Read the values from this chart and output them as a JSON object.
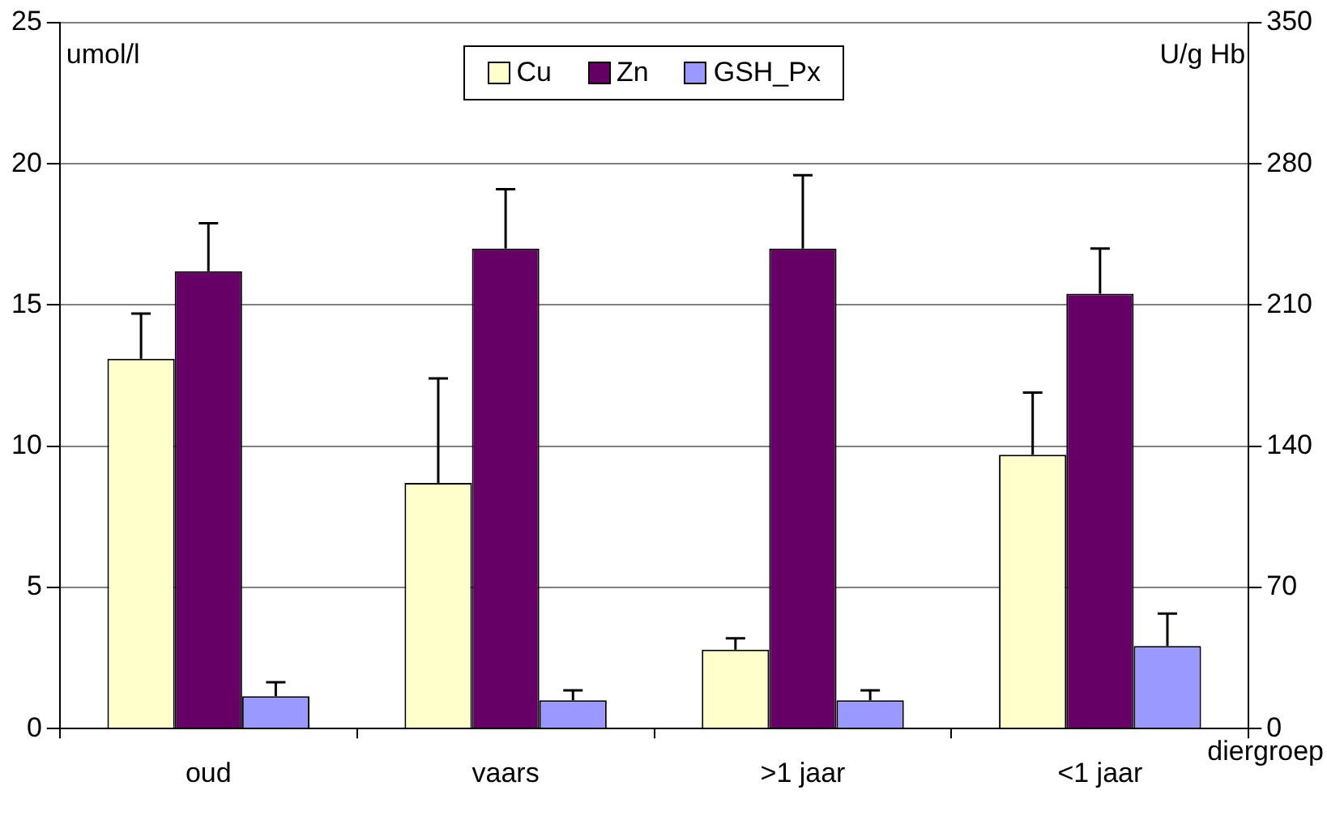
{
  "chart_data": {
    "type": "bar",
    "categories": [
      "oud",
      "vaars",
      ">1 jaar",
      "<1 jaar"
    ],
    "xlabel": "diergroep",
    "ylabel": "umol/l",
    "y2label": "U/g Hb",
    "series": [
      {
        "name": "Cu",
        "color": "#ffffcc",
        "values": [
          13.1,
          8.7,
          2.8,
          9.7
        ],
        "errors": [
          [
            13.1,
            14.7
          ],
          [
            8.7,
            12.4
          ],
          [
            2.8,
            3.2
          ],
          [
            9.7,
            11.9
          ]
        ]
      },
      {
        "name": "Zn",
        "color": "#660066",
        "values": [
          16.2,
          17.0,
          17.0,
          15.4
        ],
        "errors": [
          [
            16.2,
            17.9
          ],
          [
            17.0,
            19.1
          ],
          [
            17.0,
            19.6
          ],
          [
            15.4,
            17.0
          ]
        ]
      },
      {
        "name": "GSH_Px",
        "color": "#9999ff",
        "axis": "y2",
        "values": [
          16,
          14,
          14,
          41
        ],
        "errors": [
          [
            16,
            23
          ],
          [
            14,
            19
          ],
          [
            14,
            19
          ],
          [
            41,
            57
          ]
        ]
      }
    ],
    "ylim": [
      0,
      25
    ],
    "yticks": [
      0,
      5,
      10,
      15,
      20,
      25
    ],
    "y2lim": [
      0,
      350
    ],
    "y2ticks": [
      0,
      70,
      140,
      210,
      280,
      350
    ],
    "grid": "y",
    "legend": "top"
  }
}
